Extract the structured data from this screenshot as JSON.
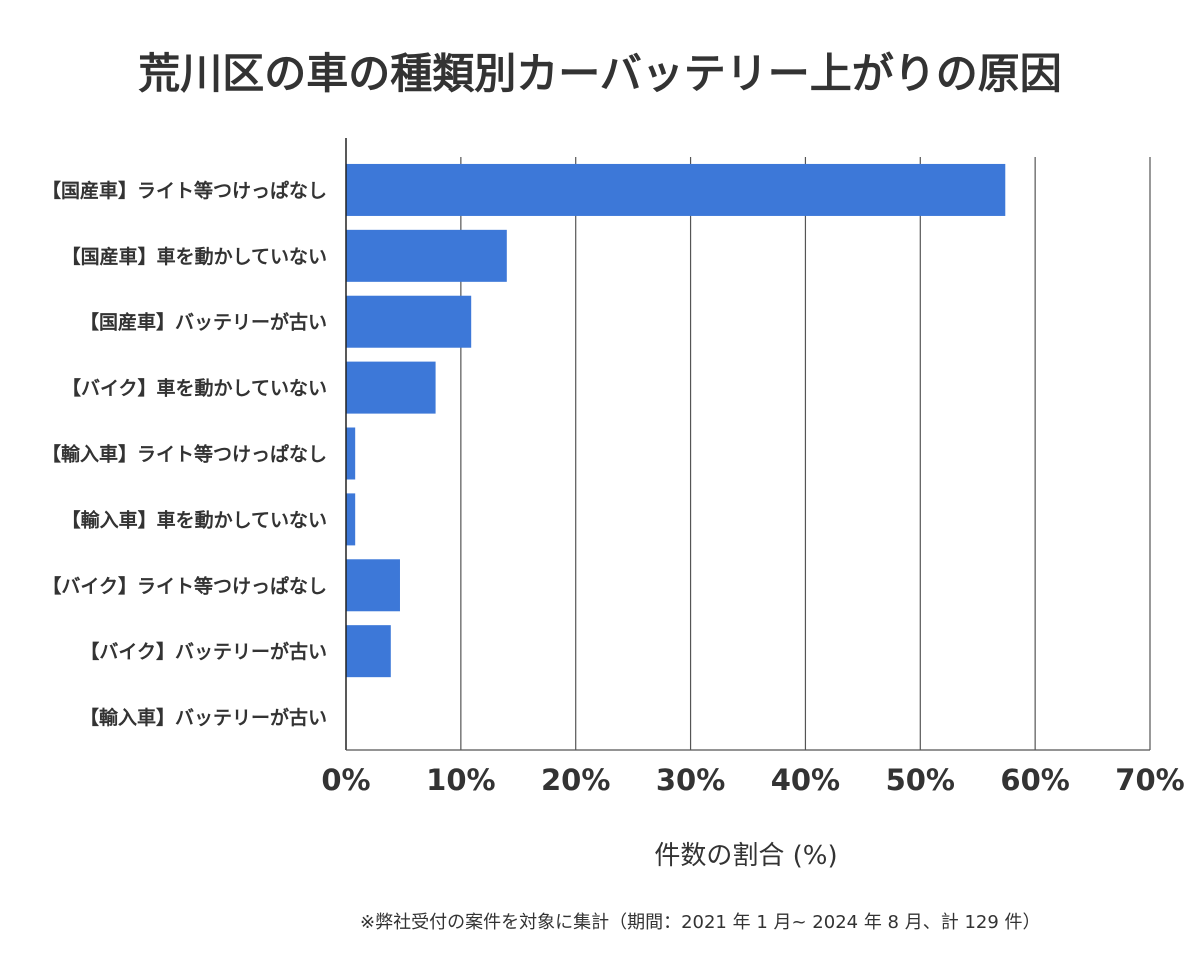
{
  "chart_data": {
    "type": "bar",
    "orientation": "horizontal",
    "title": "荒川区の車の種類別カーバッテリー上がりの原因",
    "categories": [
      "【国産車】ライト等つけっぱなし",
      "【国産車】車を動かしていない",
      "【国産車】バッテリーが古い",
      "【バイク】車を動かしていない",
      "【輸入車】ライト等つけっぱなし",
      "【輸入車】車を動かしていない",
      "【バイク】ライト等つけっぱなし",
      "【バイク】バッテリーが古い",
      "【輸入車】バッテリーが古い"
    ],
    "values": [
      57.4,
      14.0,
      10.9,
      7.8,
      0.8,
      0.8,
      4.7,
      3.9,
      0
    ],
    "xlabel": "件数の割合 (%)",
    "ylabel": "",
    "xlim": [
      0,
      70
    ],
    "xticks": [
      "0%",
      "10%",
      "20%",
      "30%",
      "40%",
      "50%",
      "60%",
      "70%"
    ],
    "grid": "vertical",
    "bar_color": "#3d78d8"
  },
  "footnote": "※弊社受付の案件を対象に集計（期間：2021 年 1 月~ 2024 年 8 月、計 129 件）"
}
